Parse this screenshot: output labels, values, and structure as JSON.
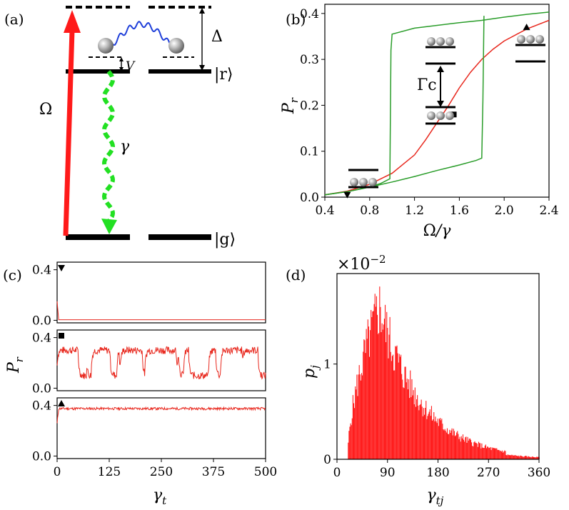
{
  "panels": {
    "a": {
      "label": "(a)",
      "omega": "Ω",
      "gamma": "γ",
      "delta": "Δ",
      "V": "V",
      "ket_r": "|r⟩",
      "ket_g": "|g⟩",
      "colors": {
        "drive": "#ff1a1a",
        "decay": "#22e022",
        "coupling": "#1f3fd9"
      }
    },
    "b": {
      "label": "(b)",
      "gamma_c": "Γc"
    },
    "c": {
      "label": "(c)"
    },
    "d": {
      "label": "(d)"
    }
  },
  "chart_data": [
    {
      "id": "b",
      "type": "line",
      "xlabel": "Ω/γ",
      "ylabel": "Pr",
      "xlim": [
        0.4,
        2.4
      ],
      "ylim": [
        0.0,
        0.42
      ],
      "xticks": [
        "0.4",
        "0.8",
        "1.2",
        "1.6",
        "2.0",
        "2.4"
      ],
      "yticks": [
        "0.0",
        "0.1",
        "0.2",
        "0.3",
        "0.4"
      ],
      "series": [
        {
          "color": "#e8281e",
          "x": [
            0.4,
            0.6,
            0.8,
            1.0,
            1.2,
            1.3,
            1.4,
            1.5,
            1.6,
            1.7,
            1.8,
            1.9,
            2.0,
            2.2,
            2.4
          ],
          "y": [
            0.005,
            0.013,
            0.028,
            0.052,
            0.092,
            0.125,
            0.162,
            0.198,
            0.238,
            0.272,
            0.3,
            0.322,
            0.34,
            0.366,
            0.385
          ]
        },
        {
          "color": "#2a9d2a",
          "name_hidden": true,
          "x": [
            0.4,
            0.6,
            0.8,
            0.9,
            0.98,
            0.99,
            1.0,
            1.2,
            1.6,
            1.8,
            2.0,
            2.2,
            2.4
          ],
          "y": [
            0.005,
            0.012,
            0.022,
            0.03,
            0.04,
            0.32,
            0.355,
            0.368,
            0.38,
            0.385,
            0.392,
            0.398,
            0.403
          ]
        },
        {
          "color": "#2a9d2a",
          "name_hidden": true,
          "x": [
            0.4,
            0.6,
            0.8,
            1.0,
            1.2,
            1.4,
            1.6,
            1.75,
            1.8,
            1.81,
            1.82
          ],
          "y": [
            0.005,
            0.012,
            0.022,
            0.033,
            0.045,
            0.058,
            0.07,
            0.08,
            0.085,
            0.21,
            0.395
          ]
        }
      ],
      "markers": [
        {
          "x": 0.6,
          "y": 0.005,
          "shape": "triangle-down"
        },
        {
          "x": 1.55,
          "y": 0.18,
          "shape": "square"
        },
        {
          "x": 2.2,
          "y": 0.37,
          "shape": "triangle-up"
        }
      ]
    },
    {
      "id": "c",
      "type": "line",
      "xlabel": "γt",
      "ylabel": "Pr",
      "xlim": [
        0,
        500
      ],
      "xticks": [
        "0",
        "125",
        "250",
        "375",
        "500"
      ],
      "yticks": [
        "0.0",
        "0.4"
      ],
      "subplots": [
        {
          "marker": "triangle-down",
          "ylim": [
            -0.02,
            0.46
          ],
          "mean": 0.005,
          "spread": 0.0,
          "start": 0.15,
          "seed": 3
        },
        {
          "marker": "square",
          "ylim": [
            -0.02,
            0.46
          ],
          "mean": 0.2,
          "spread": 0.1,
          "start": 0.18,
          "seed": 7,
          "switching": true
        },
        {
          "marker": "triangle-up",
          "ylim": [
            -0.02,
            0.46
          ],
          "mean": 0.375,
          "spread": 0.01,
          "start": 0.26,
          "seed": 11
        }
      ],
      "color": "#e8281e"
    },
    {
      "id": "d",
      "type": "bar",
      "xlabel": "γtj",
      "ylabel": "pj",
      "scale_label": "×10−2",
      "xlim": [
        0,
        360
      ],
      "ylim": [
        0,
        1.95
      ],
      "xticks": [
        "0",
        "90",
        "180",
        "270",
        "360"
      ],
      "yticks": [
        "0",
        "1"
      ],
      "color": "#ff1a1a",
      "bins": {
        "start": 18,
        "width": 1.4,
        "peak_x": 75,
        "peak_y": 1.6,
        "noise": 0.22,
        "seed": 5
      }
    }
  ]
}
